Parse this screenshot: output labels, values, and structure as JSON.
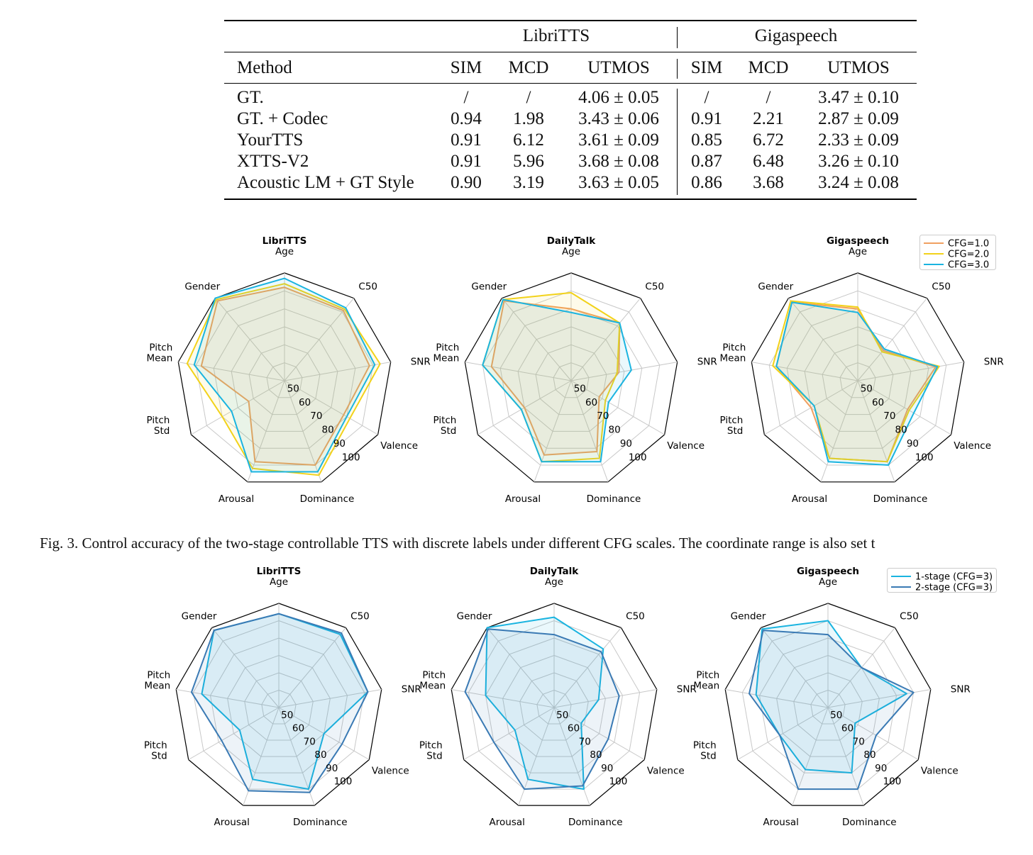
{
  "table": {
    "group_headers": [
      "LibriTTS",
      "Gigaspeech"
    ],
    "columns": [
      "Method",
      "SIM",
      "MCD",
      "UTMOS",
      "SIM",
      "MCD",
      "UTMOS"
    ],
    "rows": [
      {
        "method": "GT.",
        "libri_sim": "/",
        "libri_mcd": "/",
        "libri_utmos": "4.06 ± 0.05",
        "giga_sim": "/",
        "giga_mcd": "/",
        "giga_utmos": "3.47 ± 0.10"
      },
      {
        "method": "GT. + Codec",
        "libri_sim": "0.94",
        "libri_mcd": "1.98",
        "libri_utmos": "3.43 ± 0.06",
        "giga_sim": "0.91",
        "giga_mcd": "2.21",
        "giga_utmos": "2.87 ± 0.09"
      },
      {
        "method": "YourTTS",
        "libri_sim": "0.91",
        "libri_mcd": "6.12",
        "libri_utmos": "3.61 ± 0.09",
        "giga_sim": "0.85",
        "giga_mcd": "6.72",
        "giga_utmos": "2.33 ± 0.09"
      },
      {
        "method": "XTTS-V2",
        "libri_sim": "0.91",
        "libri_mcd": "5.96",
        "libri_utmos": "3.68 ± 0.08",
        "giga_sim": "0.87",
        "giga_mcd": "6.48",
        "giga_utmos": "3.26 ± 0.10"
      },
      {
        "method": "Acoustic LM + GT Style",
        "libri_sim": "0.90",
        "libri_mcd": "3.19",
        "libri_utmos": "3.63 ± 0.05",
        "giga_sim": "0.86",
        "giga_mcd": "3.68",
        "giga_utmos": "3.24 ± 0.08"
      }
    ]
  },
  "caption": "Fig. 3.  Control accuracy of the two-stage controllable TTS with discrete labels under different CFG scales. The coordinate range is also set t",
  "radar_axes": [
    "Age",
    "C50",
    "SNR",
    "Valence",
    "Dominance",
    "Arousal",
    "Pitch\nStd",
    "Pitch\nMean",
    "Gender"
  ],
  "radar_ticks": [
    "50",
    "60",
    "70",
    "80",
    "90",
    "100"
  ],
  "radar_range": [
    40,
    100
  ],
  "chart_data": [
    {
      "type": "radar",
      "title": "LibriTTS",
      "row": "cfg",
      "axes": [
        "Age",
        "C50",
        "SNR",
        "Valence",
        "Dominance",
        "Arousal",
        "Pitch Std",
        "Pitch Mean",
        "Gender"
      ],
      "series": [
        {
          "name": "CFG=1.0",
          "color": "#f0a060",
          "values": [
            92,
            91,
            88,
            78,
            90,
            88,
            63,
            87,
            98
          ]
        },
        {
          "name": "CFG=2.0",
          "color": "#f2d21a",
          "values": [
            94,
            92,
            94,
            82,
            96,
            92,
            80,
            95,
            99
          ]
        },
        {
          "name": "CFG=3.0",
          "color": "#1ab4e0",
          "values": [
            97,
            93,
            91,
            80,
            94,
            94,
            74,
            91,
            100
          ]
        }
      ]
    },
    {
      "type": "radar",
      "title": "DailyTalk",
      "row": "cfg",
      "axes": [
        "Age",
        "C50",
        "SNR",
        "Valence",
        "Dominance",
        "Arousal",
        "Pitch Std",
        "Pitch Mean",
        "Gender"
      ],
      "series": [
        {
          "name": "CFG=1.0",
          "color": "#f0a060",
          "values": [
            80,
            82,
            67,
            58,
            82,
            84,
            70,
            85,
            98
          ]
        },
        {
          "name": "CFG=2.0",
          "color": "#f2d21a",
          "values": [
            89,
            82,
            66,
            62,
            86,
            88,
            72,
            90,
            99
          ]
        },
        {
          "name": "CFG=3.0",
          "color": "#1ab4e0",
          "values": [
            78,
            82,
            74,
            64,
            88,
            88,
            72,
            90,
            99
          ]
        }
      ]
    },
    {
      "type": "radar",
      "title": "Gigaspeech",
      "row": "cfg",
      "axes": [
        "Age",
        "C50",
        "SNR",
        "Valence",
        "Dominance",
        "Arousal",
        "Pitch Std",
        "Pitch Mean",
        "Gender"
      ],
      "series": [
        {
          "name": "CFG=1.0",
          "color": "#f0a060",
          "values": [
            80,
            62,
            84,
            72,
            88,
            86,
            70,
            86,
            97
          ]
        },
        {
          "name": "CFG=2.0",
          "color": "#f2d21a",
          "values": [
            81,
            61,
            86,
            73,
            88,
            86,
            68,
            88,
            98
          ]
        },
        {
          "name": "CFG=3.0",
          "color": "#1ab4e0",
          "values": [
            78,
            63,
            85,
            76,
            90,
            88,
            68,
            86,
            97
          ]
        }
      ]
    },
    {
      "type": "radar",
      "title": "LibriTTS",
      "row": "stage",
      "axes": [
        "Age",
        "C50",
        "SNR",
        "Valence",
        "Dominance",
        "Arousal",
        "Pitch Std",
        "Pitch Mean",
        "Gender"
      ],
      "series": [
        {
          "name": "1-stage (CFG=3)",
          "color": "#1ab4e0",
          "values": [
            94,
            95,
            92,
            70,
            90,
            84,
            66,
            85,
            98
          ]
        },
        {
          "name": "2-stage (CFG=3)",
          "color": "#3a7ab4",
          "values": [
            94,
            96,
            92,
            82,
            92,
            91,
            78,
            91,
            98
          ]
        }
      ]
    },
    {
      "type": "radar",
      "title": "DailyTalk",
      "row": "stage",
      "axes": [
        "Age",
        "C50",
        "SNR",
        "Valence",
        "Dominance",
        "Arousal",
        "Pitch Std",
        "Pitch Mean",
        "Gender"
      ],
      "series": [
        {
          "name": "1-stage (CFG=3)",
          "color": "#1ab4e0",
          "values": [
            92,
            84,
            66,
            58,
            90,
            84,
            66,
            80,
            100
          ]
        },
        {
          "name": "2-stage (CFG=3)",
          "color": "#3a7ab4",
          "values": [
            82,
            82,
            78,
            76,
            88,
            90,
            80,
            92,
            99
          ]
        }
      ]
    },
    {
      "type": "radar",
      "title": "Gigaspeech",
      "row": "stage",
      "axes": [
        "Age",
        "C50",
        "SNR",
        "Valence",
        "Dominance",
        "Arousal",
        "Pitch Std",
        "Pitch Mean",
        "Gender"
      ],
      "series": [
        {
          "name": "1-stage (CFG=3)",
          "color": "#1ab4e0",
          "values": [
            90,
            70,
            86,
            58,
            80,
            78,
            72,
            82,
            99
          ]
        },
        {
          "name": "2-stage (CFG=3)",
          "color": "#3a7ab4",
          "values": [
            82,
            70,
            90,
            72,
            90,
            90,
            72,
            86,
            98
          ]
        }
      ]
    }
  ]
}
